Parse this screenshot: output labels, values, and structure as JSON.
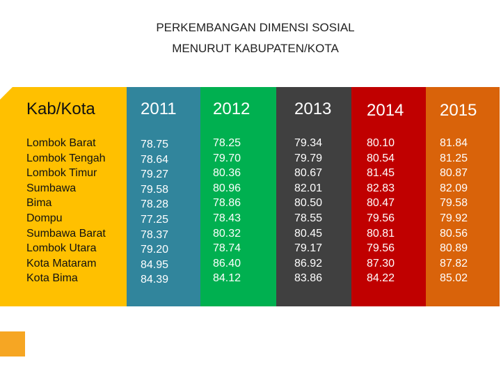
{
  "title": [
    "PERKEMBANGAN DIMENSI SOSIAL",
    "MENURUT KABUPATEN/KOTA"
  ],
  "table": {
    "header": [
      "Kab/Kota",
      "2011",
      "2012",
      "2013",
      "2014",
      "2015"
    ],
    "rows": [
      [
        "Lombok Barat",
        "78.75",
        "78.25",
        "79.34",
        "80.10",
        "81.84"
      ],
      [
        "Lombok Tengah",
        "78.64",
        "79.70",
        "79.79",
        "80.54",
        "81.25"
      ],
      [
        "Lombok Timur",
        "79.27",
        "80.36",
        "80.67",
        "81.45",
        "80.87"
      ],
      [
        "Sumbawa",
        "79.58",
        "80.96",
        "82.01",
        "82.83",
        "82.09"
      ],
      [
        "Bima",
        "78.28",
        "78.86",
        "80.50",
        "80.47",
        "79.58"
      ],
      [
        "Dompu",
        "77.25",
        "78.43",
        "78.55",
        "79.56",
        "79.92"
      ],
      [
        "Sumbawa Barat",
        "78.37",
        "80.32",
        "80.45",
        "80.81",
        "80.56"
      ],
      [
        "Lombok Utara",
        "79.20",
        "78.74",
        "79.17",
        "79.56",
        "80.89"
      ],
      [
        "Kota Mataram",
        "84.95",
        "86.40",
        "86.92",
        "87.30",
        "87.82"
      ],
      [
        "Kota Bima",
        "84.39",
        "84.12",
        "83.86",
        "84.22",
        "85.02"
      ]
    ]
  }
}
